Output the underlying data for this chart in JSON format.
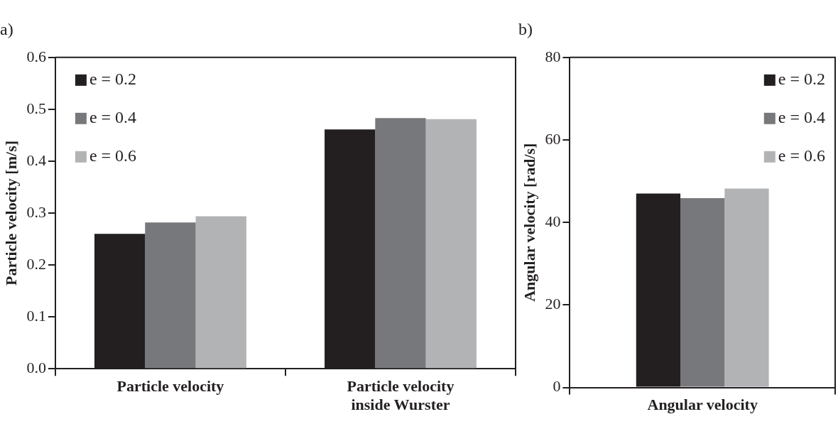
{
  "chart_data": [
    {
      "type": "bar",
      "title": "a)",
      "ylabel": "Particle velocity [m/s]",
      "categories": [
        "Particle velocity",
        "Particle velocity inside Wurster"
      ],
      "series": [
        {
          "name": "e = 0.2",
          "color": "#231f20",
          "values": [
            0.26,
            0.461
          ]
        },
        {
          "name": "e = 0.4",
          "color": "#77787b",
          "values": [
            0.282,
            0.483
          ]
        },
        {
          "name": "e = 0.6",
          "color": "#b2b3b5",
          "values": [
            0.294,
            0.481
          ]
        }
      ],
      "ylim": [
        0,
        0.6
      ],
      "yticks": [
        {
          "value": 0,
          "label": "0.0"
        },
        {
          "value": 0.1,
          "label": "0.1"
        },
        {
          "value": 0.2,
          "label": "0.2"
        },
        {
          "value": 0.3,
          "label": "0.3"
        },
        {
          "value": 0.4,
          "label": "0.4"
        },
        {
          "value": 0.5,
          "label": "0.5"
        },
        {
          "value": 0.6,
          "label": "0.6"
        }
      ],
      "legend": "top left",
      "grid": false
    },
    {
      "type": "bar",
      "title": "b)",
      "ylabel": "Angular velocity [rad/s]",
      "categories": [
        "Angular velocity"
      ],
      "series": [
        {
          "name": "e = 0.2",
          "color": "#231f20",
          "values": [
            47.0
          ]
        },
        {
          "name": "e = 0.4",
          "color": "#77787b",
          "values": [
            45.9
          ]
        },
        {
          "name": "e = 0.6",
          "color": "#b2b3b5",
          "values": [
            48.2
          ]
        }
      ],
      "ylim": [
        0,
        80
      ],
      "yticks": [
        0,
        20,
        40,
        60,
        80
      ],
      "legend": "top right",
      "grid": false
    }
  ]
}
